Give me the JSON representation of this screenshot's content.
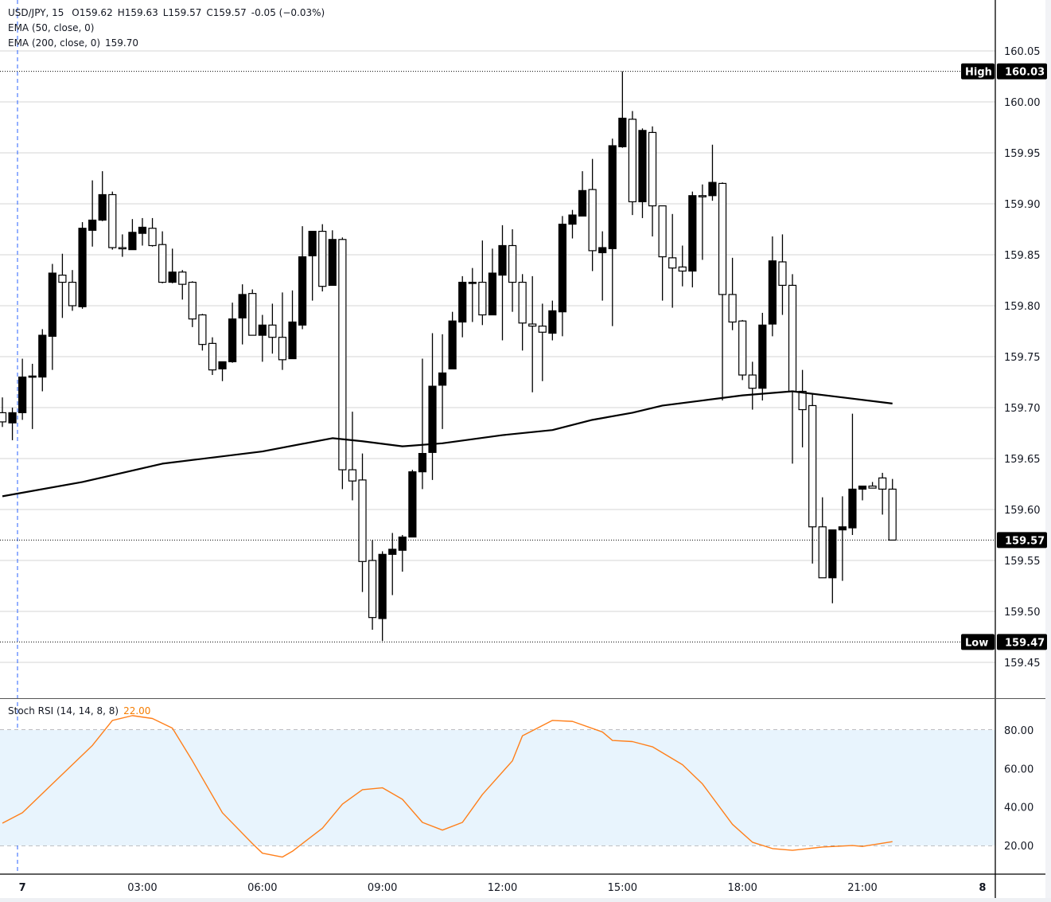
{
  "header": {
    "symbol": "USD/JPY, 15",
    "open": "O159.62",
    "high": "H159.63",
    "low": "L159.57",
    "close": "C159.57",
    "change": "-0.05 (−0.03%)",
    "ema50_label": "EMA (50, close, 0)",
    "ema200_label": "EMA (200, close, 0)",
    "ema200_value": "159.70"
  },
  "markers": {
    "high_label": "High",
    "high_value": "160.03",
    "low_label": "Low",
    "low_value": "159.47",
    "last_value": "159.57"
  },
  "stoch": {
    "label": "Stoch RSI (14, 14, 8, 8)",
    "value": "22.00"
  },
  "colors": {
    "up": "#000000",
    "down": "#ffffff",
    "ema": "#000000",
    "stoch": "#ff7f1a",
    "band": "#e8f4fd",
    "marker_bg": "#000000",
    "session_line": "#2962ff"
  },
  "chart_data": [
    {
      "type": "candlestick",
      "title": "USD/JPY, 15",
      "ylim": [
        159.42,
        160.09
      ],
      "yticks": [
        "159.45",
        "159.50",
        "159.55",
        "159.60",
        "159.65",
        "159.70",
        "159.75",
        "159.80",
        "159.85",
        "159.90",
        "159.95",
        "160.00",
        "160.05"
      ],
      "xticks": [
        {
          "time": "00:00",
          "label": "7",
          "bold": true
        },
        {
          "time": "03:00",
          "label": "03:00"
        },
        {
          "time": "06:00",
          "label": "06:00"
        },
        {
          "time": "09:00",
          "label": "09:00"
        },
        {
          "time": "12:00",
          "label": "12:00"
        },
        {
          "time": "15:00",
          "label": "15:00"
        },
        {
          "time": "18:00",
          "label": "18:00"
        },
        {
          "time": "21:00",
          "label": "21:00"
        },
        {
          "time": "24:00",
          "label": "8",
          "bold": true
        }
      ],
      "grid": true,
      "candle_fields": [
        "time",
        "open",
        "high",
        "low",
        "close"
      ],
      "candles": [
        [
          "23:30",
          159.695,
          159.71,
          159.681,
          159.686
        ],
        [
          "23:45",
          159.685,
          159.7,
          159.668,
          159.695
        ],
        [
          "00:00",
          159.695,
          159.748,
          159.688,
          159.73
        ],
        [
          "00:15",
          159.73,
          159.743,
          159.679,
          159.731
        ],
        [
          "00:30",
          159.73,
          159.777,
          159.716,
          159.771
        ],
        [
          "00:45",
          159.77,
          159.841,
          159.737,
          159.832
        ],
        [
          "01:00",
          159.83,
          159.851,
          159.788,
          159.823
        ],
        [
          "01:15",
          159.823,
          159.835,
          159.795,
          159.8
        ],
        [
          "01:30",
          159.799,
          159.882,
          159.797,
          159.876
        ],
        [
          "01:45",
          159.874,
          159.923,
          159.858,
          159.884
        ],
        [
          "02:00",
          159.884,
          159.932,
          159.883,
          159.909
        ],
        [
          "02:15",
          159.909,
          159.912,
          159.855,
          159.857
        ],
        [
          "02:30",
          159.857,
          159.87,
          159.848,
          159.856
        ],
        [
          "02:45",
          159.855,
          159.885,
          159.855,
          159.872
        ],
        [
          "03:00",
          159.871,
          159.886,
          159.859,
          159.877
        ],
        [
          "03:15",
          159.876,
          159.886,
          159.858,
          159.859
        ],
        [
          "03:30",
          159.86,
          159.873,
          159.822,
          159.823
        ],
        [
          "03:45",
          159.823,
          159.856,
          159.822,
          159.833
        ],
        [
          "04:00",
          159.833,
          159.835,
          159.806,
          159.821
        ],
        [
          "04:15",
          159.823,
          159.824,
          159.779,
          159.787
        ],
        [
          "04:30",
          159.791,
          159.792,
          159.756,
          159.762
        ],
        [
          "04:45",
          159.763,
          159.769,
          159.732,
          159.737
        ],
        [
          "05:00",
          159.738,
          159.745,
          159.726,
          159.745
        ],
        [
          "05:15",
          159.745,
          159.803,
          159.744,
          159.787
        ],
        [
          "05:30",
          159.788,
          159.821,
          159.762,
          159.811
        ],
        [
          "05:45",
          159.812,
          159.816,
          159.771,
          159.771
        ],
        [
          "06:00",
          159.771,
          159.791,
          159.745,
          159.781
        ],
        [
          "06:15",
          159.781,
          159.802,
          159.753,
          159.769
        ],
        [
          "06:30",
          159.769,
          159.813,
          159.737,
          159.747
        ],
        [
          "06:45",
          159.748,
          159.815,
          159.748,
          159.784
        ],
        [
          "07:00",
          159.781,
          159.878,
          159.777,
          159.848
        ],
        [
          "07:15",
          159.849,
          159.873,
          159.805,
          159.873
        ],
        [
          "07:30",
          159.873,
          159.88,
          159.814,
          159.819
        ],
        [
          "07:45",
          159.82,
          159.874,
          159.82,
          159.865
        ],
        [
          "08:00",
          159.865,
          159.867,
          159.62,
          159.639
        ],
        [
          "08:15",
          159.639,
          159.696,
          159.609,
          159.628
        ],
        [
          "08:30",
          159.629,
          159.655,
          159.519,
          159.549
        ],
        [
          "08:45",
          159.55,
          159.57,
          159.482,
          159.494
        ],
        [
          "09:00",
          159.493,
          159.559,
          159.471,
          159.556
        ],
        [
          "09:15",
          159.556,
          159.577,
          159.516,
          159.561
        ],
        [
          "09:30",
          159.56,
          159.575,
          159.539,
          159.573
        ],
        [
          "09:45",
          159.573,
          159.639,
          159.573,
          159.637
        ],
        [
          "10:00",
          159.637,
          159.748,
          159.62,
          159.655
        ],
        [
          "10:15",
          159.656,
          159.773,
          159.629,
          159.721
        ],
        [
          "10:30",
          159.722,
          159.772,
          159.679,
          159.734
        ],
        [
          "10:45",
          159.738,
          159.794,
          159.738,
          159.785
        ],
        [
          "11:00",
          159.784,
          159.829,
          159.769,
          159.823
        ],
        [
          "11:15",
          159.822,
          159.837,
          159.784,
          159.823
        ],
        [
          "11:30",
          159.823,
          159.864,
          159.781,
          159.791
        ],
        [
          "11:45",
          159.791,
          159.856,
          159.791,
          159.832
        ],
        [
          "12:00",
          159.83,
          159.879,
          159.766,
          159.859
        ],
        [
          "12:15",
          159.859,
          159.875,
          159.794,
          159.823
        ],
        [
          "12:30",
          159.823,
          159.831,
          159.756,
          159.783
        ],
        [
          "12:45",
          159.782,
          159.829,
          159.715,
          159.78
        ],
        [
          "13:00",
          159.78,
          159.802,
          159.726,
          159.774
        ],
        [
          "13:15",
          159.773,
          159.805,
          159.766,
          159.795
        ],
        [
          "13:30",
          159.794,
          159.888,
          159.77,
          159.88
        ],
        [
          "13:45",
          159.88,
          159.894,
          159.866,
          159.889
        ],
        [
          "14:00",
          159.888,
          159.932,
          159.888,
          159.913
        ],
        [
          "14:15",
          159.914,
          159.944,
          159.834,
          159.854
        ],
        [
          "14:30",
          159.852,
          159.873,
          159.805,
          159.857
        ],
        [
          "14:45",
          159.856,
          159.964,
          159.78,
          159.957
        ],
        [
          "15:00",
          159.956,
          160.03,
          159.955,
          159.984
        ],
        [
          "15:15",
          159.983,
          159.991,
          159.889,
          159.902
        ],
        [
          "15:30",
          159.902,
          159.974,
          159.886,
          159.972
        ],
        [
          "15:45",
          159.97,
          159.976,
          159.868,
          159.898
        ],
        [
          "16:00",
          159.898,
          159.898,
          159.805,
          159.848
        ],
        [
          "16:15",
          159.847,
          159.89,
          159.798,
          159.837
        ],
        [
          "16:30",
          159.838,
          159.859,
          159.819,
          159.834
        ],
        [
          "16:45",
          159.834,
          159.912,
          159.818,
          159.908
        ],
        [
          "17:00",
          159.908,
          159.919,
          159.845,
          159.907
        ],
        [
          "17:15",
          159.908,
          159.958,
          159.903,
          159.921
        ],
        [
          "17:30",
          159.92,
          159.921,
          159.707,
          159.811
        ],
        [
          "17:45",
          159.811,
          159.847,
          159.776,
          159.784
        ],
        [
          "18:00",
          159.785,
          159.786,
          159.727,
          159.732
        ],
        [
          "18:15",
          159.732,
          159.745,
          159.698,
          159.719
        ],
        [
          "18:30",
          159.719,
          159.793,
          159.707,
          159.781
        ],
        [
          "18:45",
          159.782,
          159.868,
          159.77,
          159.844
        ],
        [
          "19:00",
          159.843,
          159.87,
          159.791,
          159.82
        ],
        [
          "19:15",
          159.82,
          159.831,
          159.645,
          159.716
        ],
        [
          "19:30",
          159.716,
          159.737,
          159.661,
          159.698
        ],
        [
          "19:45",
          159.702,
          159.714,
          159.547,
          159.583
        ],
        [
          "20:00",
          159.583,
          159.612,
          159.533,
          159.533
        ],
        [
          "20:15",
          159.533,
          159.58,
          159.508,
          159.58
        ],
        [
          "20:30",
          159.58,
          159.613,
          159.53,
          159.583
        ],
        [
          "20:45",
          159.582,
          159.694,
          159.575,
          159.62
        ],
        [
          "21:00",
          159.62,
          159.623,
          159.609,
          159.623
        ],
        [
          "21:15",
          159.623,
          159.627,
          159.621,
          159.621
        ],
        [
          "21:30",
          159.631,
          159.636,
          159.595,
          159.62
        ],
        [
          "21:45",
          159.62,
          159.63,
          159.57,
          159.57
        ]
      ],
      "ema200": [
        [
          "23:30",
          159.613
        ],
        [
          "01:30",
          159.627
        ],
        [
          "03:30",
          159.645
        ],
        [
          "06:00",
          159.657
        ],
        [
          "07:45",
          159.67
        ],
        [
          "08:30",
          159.667
        ],
        [
          "09:30",
          159.662
        ],
        [
          "10:30",
          159.665
        ],
        [
          "12:00",
          159.673
        ],
        [
          "13:15",
          159.678
        ],
        [
          "14:15",
          159.688
        ],
        [
          "15:15",
          159.695
        ],
        [
          "16:00",
          159.702
        ],
        [
          "17:00",
          159.707
        ],
        [
          "18:00",
          159.712
        ],
        [
          "19:15",
          159.716
        ],
        [
          "20:30",
          159.71
        ],
        [
          "21:45",
          159.704
        ]
      ],
      "reference_lines": {
        "high": 160.03,
        "low": 159.47,
        "last": 159.57
      }
    },
    {
      "type": "line",
      "title": "Stoch RSI (14, 14, 8, 8)",
      "ylim": [
        0,
        100
      ],
      "yticks": [
        "20.00",
        "40.00",
        "60.00",
        "80.00"
      ],
      "band": [
        20,
        80
      ],
      "series": [
        {
          "name": "Stoch RSI",
          "points": [
            [
              "23:30",
              31.6
            ],
            [
              "00:00",
              37
            ],
            [
              "00:45",
              52
            ],
            [
              "01:45",
              72
            ],
            [
              "02:15",
              85
            ],
            [
              "02:45",
              87.5
            ],
            [
              "03:15",
              86
            ],
            [
              "03:45",
              81
            ],
            [
              "04:15",
              64
            ],
            [
              "05:00",
              37
            ],
            [
              "05:45",
              21
            ],
            [
              "06:00",
              16
            ],
            [
              "06:30",
              14
            ],
            [
              "06:45",
              17
            ],
            [
              "07:30",
              29
            ],
            [
              "08:00",
              41.5
            ],
            [
              "08:30",
              49
            ],
            [
              "09:00",
              50
            ],
            [
              "09:30",
              44
            ],
            [
              "10:00",
              32
            ],
            [
              "10:30",
              28
            ],
            [
              "11:00",
              32
            ],
            [
              "11:30",
              46.5
            ],
            [
              "12:15",
              64
            ],
            [
              "12:30",
              77
            ],
            [
              "13:15",
              85
            ],
            [
              "13:45",
              84.5
            ],
            [
              "14:30",
              79
            ],
            [
              "14:45",
              74.6
            ],
            [
              "15:15",
              74
            ],
            [
              "15:45",
              71.3
            ],
            [
              "16:30",
              62
            ],
            [
              "17:00",
              52
            ],
            [
              "17:45",
              31
            ],
            [
              "18:15",
              21.7
            ],
            [
              "18:45",
              18.4
            ],
            [
              "19:15",
              17.5
            ],
            [
              "20:00",
              19.2
            ],
            [
              "20:45",
              20
            ],
            [
              "21:00",
              19.5
            ],
            [
              "21:45",
              22
            ]
          ]
        }
      ]
    }
  ]
}
